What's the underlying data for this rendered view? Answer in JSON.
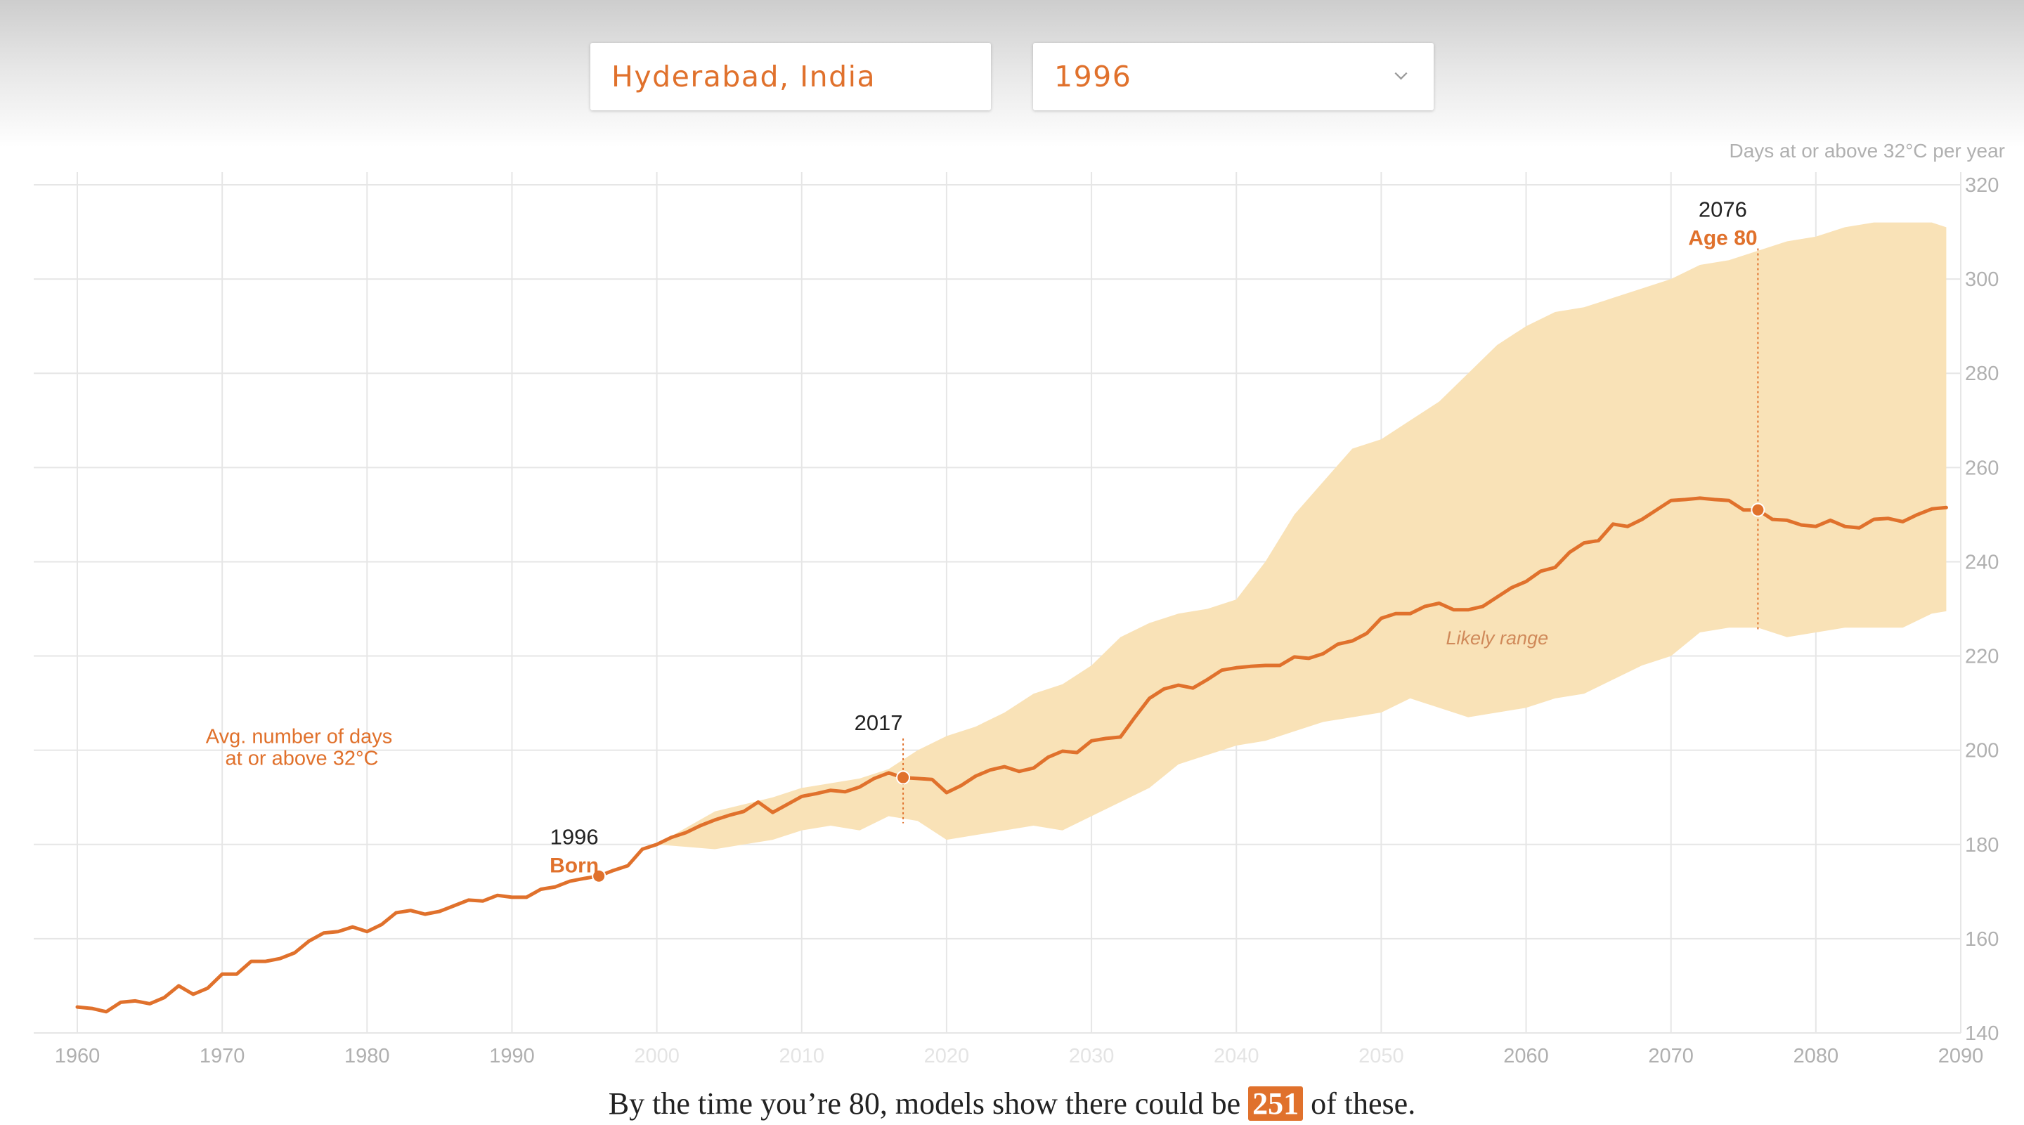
{
  "controls": {
    "city": "Hyderabad, India",
    "birth_year": "1996"
  },
  "colors": {
    "accent": "#e0712c",
    "range_band": "#f9e2b7",
    "grid": "#e6e6e6",
    "tick_text": "#b0b0b0",
    "annotation_text": "#222222"
  },
  "summary": {
    "before": "By the time you’re 80, models show there could be",
    "value": "251",
    "after": "of these."
  },
  "chart_data": {
    "type": "line",
    "title": "",
    "xlabel": "",
    "ylabel": "Days at or above 32°C per year",
    "xlim": [
      1960,
      2090
    ],
    "ylim": [
      140,
      320
    ],
    "x_ticks": [
      "1960",
      "1970",
      "1980",
      "1990",
      "2000",
      "2010",
      "2020",
      "2030",
      "2040",
      "2050",
      "2060",
      "2070",
      "2080",
      "2090"
    ],
    "y_ticks": [
      "140",
      "160",
      "180",
      "200",
      "220",
      "240",
      "260",
      "280",
      "300",
      "320"
    ],
    "grid": true,
    "series": [
      {
        "name": "Avg. number of days at or above 32°C",
        "x": [
          1960,
          1961,
          1962,
          1963,
          1964,
          1965,
          1966,
          1967,
          1968,
          1969,
          1970,
          1971,
          1972,
          1973,
          1974,
          1975,
          1976,
          1977,
          1978,
          1979,
          1980,
          1981,
          1982,
          1983,
          1984,
          1985,
          1986,
          1987,
          1988,
          1989,
          1990,
          1991,
          1992,
          1993,
          1994,
          1995,
          1996,
          1997,
          1998,
          1999,
          2000,
          2001,
          2002,
          2003,
          2004,
          2005,
          2006,
          2007,
          2008,
          2009,
          2010,
          2011,
          2012,
          2013,
          2014,
          2015,
          2016,
          2017,
          2018,
          2019,
          2020,
          2021,
          2022,
          2023,
          2024,
          2025,
          2026,
          2027,
          2028,
          2029,
          2030,
          2031,
          2032,
          2033,
          2034,
          2035,
          2036,
          2037,
          2038,
          2039,
          2040,
          2041,
          2042,
          2043,
          2044,
          2045,
          2046,
          2047,
          2048,
          2049,
          2050,
          2051,
          2052,
          2053,
          2054,
          2055,
          2056,
          2057,
          2058,
          2059,
          2060,
          2061,
          2062,
          2063,
          2064,
          2065,
          2066,
          2067,
          2068,
          2069,
          2070,
          2071,
          2072,
          2073,
          2074,
          2075,
          2076,
          2077,
          2078,
          2079,
          2080,
          2081,
          2082,
          2083,
          2084,
          2085,
          2086,
          2087,
          2088,
          2089
        ],
        "values": [
          145.5,
          145.2,
          144.5,
          146.5,
          146.8,
          146.2,
          147.5,
          150,
          148.2,
          149.5,
          152.5,
          152.5,
          155.2,
          155.2,
          155.8,
          157,
          159.5,
          161.2,
          161.5,
          162.5,
          161.5,
          163,
          165.5,
          166,
          165.2,
          165.8,
          167,
          168.2,
          168,
          169.2,
          168.8,
          168.8,
          170.5,
          171,
          172.2,
          172.8,
          173.3,
          174.5,
          175.5,
          179,
          180,
          181.5,
          182.5,
          184,
          185.2,
          186.2,
          187,
          189,
          186.8,
          188.5,
          190.2,
          190.8,
          191.5,
          191.2,
          192.2,
          194,
          195.2,
          194.2,
          194,
          193.8,
          191,
          192.5,
          194.5,
          195.8,
          196.5,
          195.5,
          196.2,
          198.5,
          199.8,
          199.5,
          202,
          202.5,
          202.8,
          207,
          211,
          213,
          213.8,
          213.2,
          215,
          217,
          217.5,
          217.8,
          218,
          218,
          219.8,
          219.5,
          220.5,
          222.5,
          223.2,
          224.8,
          228,
          229,
          229,
          230.5,
          231.2,
          229.8,
          229.8,
          230.5,
          232.5,
          234.5,
          235.8,
          238,
          238.8,
          242,
          244,
          244.5,
          248,
          247.5,
          249,
          251,
          253,
          253.2,
          253.5,
          253.2,
          253,
          251,
          251,
          249,
          248.8,
          247.8,
          247.5,
          248.8,
          247.5,
          247.2,
          249,
          249.2,
          248.5,
          250,
          251.2,
          251.5
        ]
      }
    ],
    "range": {
      "name": "Likely range",
      "x": [
        2000,
        2002,
        2004,
        2006,
        2008,
        2010,
        2012,
        2014,
        2016,
        2018,
        2020,
        2022,
        2024,
        2026,
        2028,
        2030,
        2032,
        2034,
        2036,
        2038,
        2040,
        2042,
        2044,
        2046,
        2048,
        2050,
        2052,
        2054,
        2056,
        2058,
        2060,
        2062,
        2064,
        2066,
        2068,
        2070,
        2072,
        2074,
        2076,
        2078,
        2080,
        2082,
        2084,
        2086,
        2088,
        2089
      ],
      "low": [
        180,
        179.5,
        179,
        180,
        181,
        183,
        184,
        183,
        186,
        185,
        181,
        182,
        183,
        184,
        183,
        186,
        189,
        192,
        197,
        199,
        201,
        202,
        204,
        206,
        207,
        208,
        211,
        209,
        207,
        208,
        209,
        211,
        212,
        215,
        218,
        220,
        225,
        226,
        226,
        224,
        225,
        226,
        226,
        226,
        229,
        229.5
      ],
      "high": [
        180,
        183.5,
        187,
        188.5,
        190,
        192,
        193,
        194,
        196,
        200,
        203,
        205,
        208,
        212,
        214,
        218,
        224,
        227,
        229,
        230,
        232,
        240,
        250,
        257,
        264,
        266,
        270,
        274,
        280,
        286,
        290,
        293,
        294,
        296,
        298,
        300,
        303,
        304,
        306,
        308,
        309,
        311,
        312,
        312,
        312,
        311
      ]
    },
    "annotations": [
      {
        "year": 1996,
        "value": 173.3,
        "label": "1996",
        "sublabel": "Born"
      },
      {
        "year": 2017,
        "value": 194.2,
        "label": "2017",
        "range_low": 184.5,
        "range_high": 202.5
      },
      {
        "year": 2076,
        "value": 251,
        "label": "2076",
        "sublabel": "Age 80",
        "range_low": 225.5,
        "range_high": 306.5
      }
    ],
    "series_label": [
      "Avg. number of days",
      "at or above 32°C"
    ],
    "range_label": "Likely range",
    "legend": "none"
  }
}
